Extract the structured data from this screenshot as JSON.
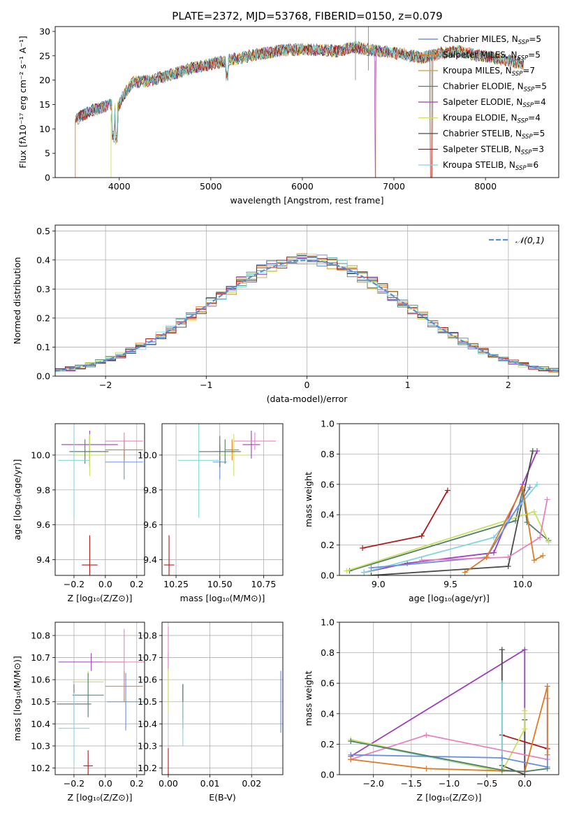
{
  "figure": {
    "title": "PLATE=2372, MJD=53768, FIBERID=0150, z=0.079"
  },
  "chart_data": [
    {
      "id": "spectrum",
      "type": "line",
      "xlabel": "wavelength [Angstrom, rest frame]",
      "ylabel": "Flux [fλ10⁻¹⁷ erg cm⁻² s⁻¹ A⁻¹]",
      "xlim": [
        3300,
        8800
      ],
      "ylim": [
        0,
        31
      ],
      "xticks": [
        4000,
        5000,
        6000,
        7000,
        8000
      ],
      "yticks": [
        0,
        5,
        10,
        15,
        20,
        25,
        30
      ],
      "legend_position": "right",
      "anchors": [
        [
          3520,
          11.8
        ],
        [
          3600,
          12.8
        ],
        [
          3700,
          13.8
        ],
        [
          3800,
          14.3
        ],
        [
          3900,
          15
        ],
        [
          3970,
          14
        ],
        [
          4050,
          17
        ],
        [
          4150,
          19.6
        ],
        [
          4300,
          19.8
        ],
        [
          4450,
          20.5
        ],
        [
          4600,
          21.3
        ],
        [
          4800,
          22.5
        ],
        [
          5000,
          23.3
        ],
        [
          5200,
          24.1
        ],
        [
          5400,
          24.9
        ],
        [
          5600,
          25.6
        ],
        [
          5800,
          26.2
        ],
        [
          6000,
          26.3
        ],
        [
          6200,
          26.2
        ],
        [
          6400,
          25.9
        ],
        [
          6563,
          26.8
        ],
        [
          6700,
          26.3
        ],
        [
          6900,
          25.8
        ],
        [
          7100,
          25.3
        ],
        [
          7300,
          24.6
        ],
        [
          7500,
          25.5
        ],
        [
          7700,
          25.9
        ],
        [
          7900,
          25.1
        ],
        [
          8100,
          24.6
        ],
        [
          8300,
          23.8
        ],
        [
          8420,
          23.4
        ]
      ],
      "series": [
        {
          "name": "Chabrier MILES, N",
          "sub": "SSP",
          "suffix": "=5",
          "color": "#4f7fd1"
        },
        {
          "name": "Salpeter MILES, N",
          "sub": "SSP",
          "suffix": "=5",
          "color": "#e07b20"
        },
        {
          "name": "Kroupa MILES, N",
          "sub": "SSP",
          "suffix": "=7",
          "color": "#c8a040"
        },
        {
          "name": "Chabrier ELODIE, N",
          "sub": "SSP",
          "suffix": "=5",
          "color": "#4f7f6a"
        },
        {
          "name": "Salpeter ELODIE, N",
          "sub": "SSP",
          "suffix": "=4",
          "color": "#9c3fb8"
        },
        {
          "name": "Kroupa ELODIE, N",
          "sub": "SSP",
          "suffix": "=4",
          "color": "#c9e060"
        },
        {
          "name": "Chabrier STELIB, N",
          "sub": "SSP",
          "suffix": "=5",
          "color": "#4a4a4a"
        },
        {
          "name": "Salpeter STELIB, N",
          "sub": "SSP",
          "suffix": "=3",
          "color": "#b01818"
        },
        {
          "name": "Kroupa STELIB, N",
          "sub": "SSP",
          "suffix": "=6",
          "color": "#7fd6dc"
        }
      ]
    },
    {
      "id": "residuals",
      "type": "histogram",
      "xlabel": "(data-model)/error",
      "ylabel": "Normed distribution",
      "xlim": [
        -2.5,
        2.5
      ],
      "ylim": [
        0,
        0.52
      ],
      "xticks": [
        -2,
        -1,
        0,
        1,
        2
      ],
      "yticks": [
        0.0,
        0.1,
        0.2,
        0.3,
        0.4,
        0.5
      ],
      "grid": true,
      "legend_position": "top-right",
      "legend_label": "𝒩(0,1)",
      "reference_curve": "normal(0,1) density",
      "reference_color": "#5a8fd6"
    },
    {
      "id": "age-vs-Z",
      "type": "errorbar",
      "xlabel": "Z [log₁₀(Z/Z⊙)]",
      "ylabel": "age  [log₁₀(age/yr)]",
      "xlim": [
        -0.32,
        0.25
      ],
      "ylim": [
        9.31,
        10.18
      ],
      "xticks": [
        -0.2,
        0.0,
        0.2
      ],
      "yticks": [
        9.4,
        9.6,
        9.8,
        10.0
      ],
      "grid": true,
      "points": [
        {
          "x": 0.12,
          "y": 9.96,
          "xerr": 0.12,
          "yerr": 0.1,
          "color": "#6b8fe0"
        },
        {
          "x": 0.12,
          "y": 10.03,
          "xerr": 0.12,
          "yerr": 0.06,
          "color": "#e07b20"
        },
        {
          "x": -0.1,
          "y": 10.06,
          "xerr": 0.18,
          "yerr": 0.08,
          "color": "#9c3fb8"
        },
        {
          "x": 0.12,
          "y": 10.08,
          "xerr": 0.12,
          "yerr": 0.05,
          "color": "#e882be"
        },
        {
          "x": -0.1,
          "y": 10.02,
          "xerr": 0.12,
          "yerr": 0.09,
          "color": "#6a6a6a"
        },
        {
          "x": -0.1,
          "y": 10.0,
          "xerr": 0.1,
          "yerr": 0.12,
          "color": "#c9e060"
        },
        {
          "x": -0.13,
          "y": 10.02,
          "xerr": 0.1,
          "yerr": 0.07,
          "color": "#4f7f6a"
        },
        {
          "x": -0.2,
          "y": 9.97,
          "xerr": 0.1,
          "yerr": 0.33,
          "color": "#7fd6dc"
        },
        {
          "x": -0.1,
          "y": 9.37,
          "xerr": 0.05,
          "yerr": 0.17,
          "color": "#b01818"
        }
      ]
    },
    {
      "id": "age-vs-mass",
      "type": "errorbar",
      "xlabel": "mass [log₁₀(M/M⊙)]",
      "ylabel": "",
      "xlim": [
        10.17,
        10.86
      ],
      "ylim": [
        9.31,
        10.18
      ],
      "xticks": [
        10.25,
        10.5,
        10.75
      ],
      "yticks": [
        9.4,
        9.6,
        9.8,
        10.0
      ],
      "grid": true,
      "points": [
        {
          "x": 10.5,
          "y": 9.96,
          "xerr": 0.04,
          "yerr": 0.1,
          "color": "#6b8fe0"
        },
        {
          "x": 10.57,
          "y": 10.03,
          "xerr": 0.04,
          "yerr": 0.06,
          "color": "#e07b20"
        },
        {
          "x": 10.68,
          "y": 10.06,
          "xerr": 0.05,
          "yerr": 0.08,
          "color": "#9c3fb8"
        },
        {
          "x": 10.7,
          "y": 10.08,
          "xerr": 0.12,
          "yerr": 0.05,
          "color": "#e882be"
        },
        {
          "x": 10.5,
          "y": 10.02,
          "xerr": 0.12,
          "yerr": 0.09,
          "color": "#6a6a6a"
        },
        {
          "x": 10.58,
          "y": 10.0,
          "xerr": 0.08,
          "yerr": 0.12,
          "color": "#c9e060"
        },
        {
          "x": 10.53,
          "y": 10.02,
          "xerr": 0.06,
          "yerr": 0.07,
          "color": "#4f7f6a"
        },
        {
          "x": 10.38,
          "y": 9.97,
          "xerr": 0.12,
          "yerr": 0.33,
          "color": "#7fd6dc"
        },
        {
          "x": 10.21,
          "y": 9.37,
          "xerr": 0.03,
          "yerr": 0.17,
          "color": "#b01818"
        }
      ]
    },
    {
      "id": "weight-vs-age",
      "type": "line",
      "xlabel": "age  [log₁₀(age/yr)]",
      "ylabel": "mass weight",
      "xlim": [
        8.73,
        10.25
      ],
      "ylim": [
        0,
        1
      ],
      "xticks": [
        9.0,
        9.5,
        10.0
      ],
      "yticks": [
        0.0,
        0.2,
        0.4,
        0.6,
        0.8,
        1.0
      ],
      "grid": true,
      "series": [
        {
          "color": "#b01818",
          "points": [
            [
              8.89,
              0.18
            ],
            [
              9.3,
              0.26
            ],
            [
              9.48,
              0.56
            ]
          ]
        },
        {
          "color": "#4f7f6a",
          "points": [
            [
              8.8,
              0.03
            ],
            [
              9.95,
              0.36
            ],
            [
              10.0,
              0.56
            ],
            [
              10.03,
              0.35
            ],
            [
              10.18,
              0.23
            ]
          ]
        },
        {
          "color": "#c9e060",
          "points": [
            [
              8.78,
              0.03
            ],
            [
              10.08,
              0.42
            ],
            [
              10.18,
              0.22
            ]
          ]
        },
        {
          "color": "#9c3fb8",
          "points": [
            [
              8.9,
              0.02
            ],
            [
              9.2,
              0.08
            ],
            [
              9.8,
              0.15
            ],
            [
              10.0,
              0.6
            ],
            [
              10.1,
              0.82
            ]
          ]
        },
        {
          "color": "#4a4a4a",
          "points": [
            [
              8.95,
              0.0
            ],
            [
              9.9,
              0.06
            ],
            [
              10.07,
              0.82
            ]
          ]
        },
        {
          "color": "#7fd6dc",
          "points": [
            [
              8.9,
              0.02
            ],
            [
              9.8,
              0.25
            ],
            [
              10.1,
              0.6
            ]
          ]
        },
        {
          "color": "#6b8fe0",
          "points": [
            [
              8.95,
              0.05
            ],
            [
              9.75,
              0.12
            ],
            [
              10.05,
              0.58
            ]
          ]
        },
        {
          "color": "#e882be",
          "points": [
            [
              9.3,
              0.1
            ],
            [
              9.9,
              0.12
            ],
            [
              10.12,
              0.25
            ],
            [
              10.17,
              0.5
            ]
          ]
        },
        {
          "color": "#e07b20",
          "points": [
            [
              9.6,
              0.02
            ],
            [
              9.75,
              0.12
            ],
            [
              10.0,
              0.58
            ],
            [
              10.08,
              0.1
            ],
            [
              10.14,
              0.13
            ]
          ]
        }
      ]
    },
    {
      "id": "mass-vs-Z",
      "type": "errorbar",
      "xlabel": "Z [log₁₀(Z/Z⊙)]",
      "ylabel": "mass [log₁₀(M/M⊙)]",
      "xlim": [
        -0.32,
        0.25
      ],
      "ylim": [
        10.17,
        10.86
      ],
      "xticks": [
        -0.2,
        0.0,
        0.2
      ],
      "yticks": [
        10.2,
        10.3,
        10.4,
        10.5,
        10.6,
        10.7,
        10.8
      ],
      "grid": true,
      "points": [
        {
          "x": 0.13,
          "y": 10.5,
          "xerr": 0.12,
          "yerr": 0.13,
          "color": "#6b8fe0"
        },
        {
          "x": 0.12,
          "y": 10.57,
          "xerr": 0.12,
          "yerr": 0.07,
          "color": "#e07b20"
        },
        {
          "x": -0.09,
          "y": 10.68,
          "xerr": 0.21,
          "yerr": 0.04,
          "color": "#9c3fb8"
        },
        {
          "x": 0.12,
          "y": 10.68,
          "xerr": 0.14,
          "yerr": 0.15,
          "color": "#e882be"
        },
        {
          "x": -0.2,
          "y": 10.49,
          "xerr": 0.11,
          "yerr": 0.09,
          "color": "#6a6a6a"
        },
        {
          "x": -0.11,
          "y": 10.59,
          "xerr": 0.1,
          "yerr": 0.05,
          "color": "#c9e060"
        },
        {
          "x": -0.11,
          "y": 10.53,
          "xerr": 0.1,
          "yerr": 0.1,
          "color": "#4f7f6a"
        },
        {
          "x": -0.2,
          "y": 10.38,
          "xerr": 0.1,
          "yerr": 0.16,
          "color": "#7fd6dc"
        },
        {
          "x": -0.11,
          "y": 10.21,
          "xerr": 0.03,
          "yerr": 0.07,
          "color": "#b01818"
        }
      ]
    },
    {
      "id": "mass-vs-EBV",
      "type": "errorbar",
      "xlabel": "E(B-V)",
      "ylabel": "",
      "xlim": [
        -0.0015,
        0.0275
      ],
      "ylim": [
        10.17,
        10.86
      ],
      "xticks": [
        0.0,
        0.01,
        0.02
      ],
      "yticks": [
        10.2,
        10.3,
        10.4,
        10.5,
        10.6,
        10.7,
        10.8
      ],
      "grid": true,
      "points": [
        {
          "x": 0.027,
          "y": 10.5,
          "xerr": 0,
          "yerr": 0.14,
          "color": "#6b8fe0"
        },
        {
          "x": 0.0,
          "y": 10.57,
          "xerr": 0,
          "yerr": 0.07,
          "color": "#e07b20"
        },
        {
          "x": 0.0,
          "y": 10.68,
          "xerr": 0,
          "yerr": 0.04,
          "color": "#9c3fb8"
        },
        {
          "x": 0.0,
          "y": 10.74,
          "xerr": 0,
          "yerr": 0.1,
          "color": "#e882be"
        },
        {
          "x": 0.0035,
          "y": 10.5,
          "xerr": 0,
          "yerr": 0.08,
          "color": "#6a6a6a"
        },
        {
          "x": 0.0,
          "y": 10.55,
          "xerr": 0,
          "yerr": 0.1,
          "color": "#c9e060"
        },
        {
          "x": 0.0035,
          "y": 10.48,
          "xerr": 0,
          "yerr": 0.1,
          "color": "#4f7f6a"
        },
        {
          "x": 0.0035,
          "y": 10.4,
          "xerr": 0,
          "yerr": 0.1,
          "color": "#7fd6dc"
        },
        {
          "x": 0.0,
          "y": 10.22,
          "xerr": 0,
          "yerr": 0.07,
          "color": "#b01818"
        }
      ]
    },
    {
      "id": "weight-vs-Z",
      "type": "line",
      "xlabel": "Z [log₁₀(Z/Z⊙)]",
      "ylabel": "mass weight",
      "xlim": [
        -2.45,
        0.45
      ],
      "ylim": [
        0,
        1
      ],
      "xticks": [
        -2.0,
        -1.5,
        -1.0,
        -0.5,
        0.0
      ],
      "yticks": [
        0.0,
        0.2,
        0.4,
        0.6,
        0.8,
        1.0
      ],
      "grid": true,
      "series": [
        {
          "color": "#9c3fb8",
          "points": [
            [
              -2.3,
              0.12
            ],
            [
              0.0,
              0.82
            ],
            [
              0.0,
              0.02
            ]
          ]
        },
        {
          "color": "#4a4a4a",
          "points": [
            [
              -0.3,
              0.82
            ],
            [
              -0.3,
              0.06
            ],
            [
              0.0,
              0.0
            ],
            [
              0.0,
              0.36
            ]
          ]
        },
        {
          "color": "#b01818",
          "points": [
            [
              -0.3,
              0.26
            ],
            [
              0.3,
              0.17
            ]
          ]
        },
        {
          "color": "#7fd6dc",
          "points": [
            [
              -2.3,
              0.22
            ],
            [
              -0.3,
              0.02
            ],
            [
              -0.3,
              0.6
            ]
          ]
        },
        {
          "color": "#c9e060",
          "points": [
            [
              -2.3,
              0.23
            ],
            [
              -0.3,
              0.02
            ],
            [
              0.0,
              0.3
            ],
            [
              0.0,
              0.42
            ]
          ]
        },
        {
          "color": "#e882be",
          "points": [
            [
              -2.3,
              0.1
            ],
            [
              -1.3,
              0.26
            ],
            [
              0.3,
              0.1
            ],
            [
              0.3,
              0.5
            ]
          ]
        },
        {
          "color": "#6b8fe0",
          "points": [
            [
              -2.3,
              0.13
            ],
            [
              -0.3,
              0.11
            ],
            [
              0.3,
              0.05
            ],
            [
              0.3,
              0.58
            ]
          ]
        },
        {
          "color": "#e07b20",
          "points": [
            [
              -2.3,
              0.1
            ],
            [
              -1.3,
              0.04
            ],
            [
              0.0,
              0.02
            ],
            [
              0.3,
              0.58
            ],
            [
              0.3,
              0.13
            ]
          ]
        },
        {
          "color": "#4f7f6a",
          "points": [
            [
              -2.3,
              0.22
            ],
            [
              -0.3,
              0.03
            ],
            [
              0.0,
              0.02
            ],
            [
              0.3,
              0.04
            ]
          ]
        }
      ]
    }
  ]
}
